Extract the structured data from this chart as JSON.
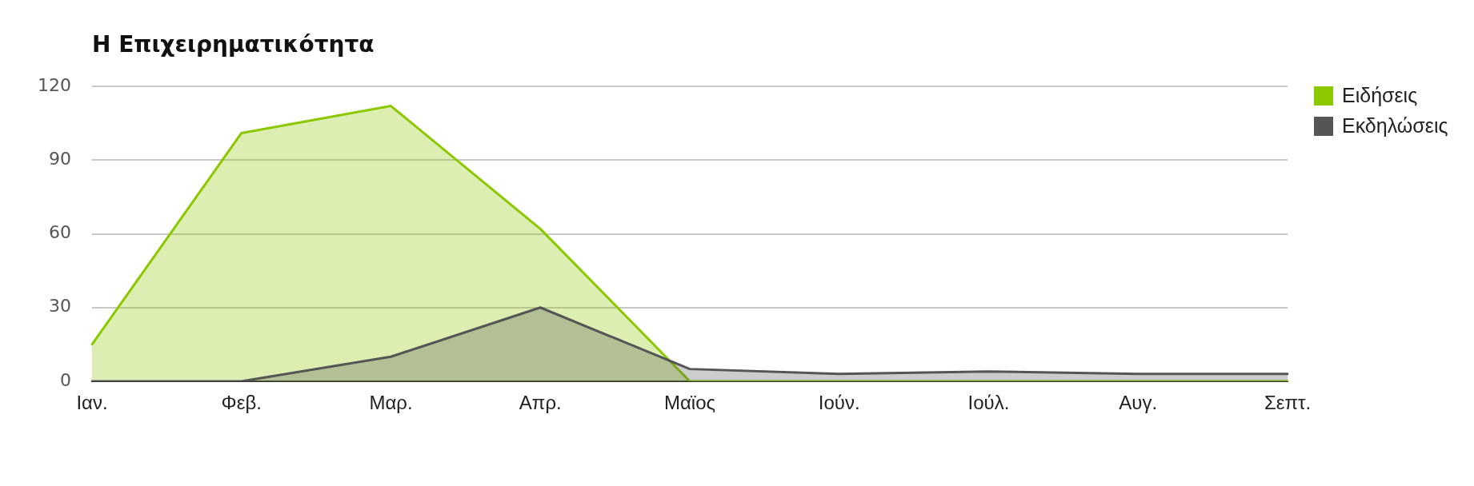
{
  "chart_data": {
    "type": "area",
    "title": "Η Επιχειρηματικότητα",
    "categories": [
      "Ιαν.",
      "Φεβ.",
      "Μαρ.",
      "Απρ.",
      "Μαϊος",
      "Ιούν.",
      "Ιούλ.",
      "Αυγ.",
      "Σεπτ."
    ],
    "series": [
      {
        "name": "Ειδήσεις",
        "color": "#8cc800",
        "values": [
          15,
          101,
          112,
          62,
          0,
          0,
          0,
          0,
          0
        ]
      },
      {
        "name": "Εκδηλώσεις",
        "color": "#555555",
        "values": [
          0,
          0,
          10,
          30,
          5,
          3,
          4,
          3,
          3
        ]
      }
    ],
    "ylim": [
      0,
      120
    ],
    "yticks": [
      0,
      30,
      60,
      90,
      120
    ],
    "grid": "y",
    "legend": "right",
    "marker": "none"
  }
}
